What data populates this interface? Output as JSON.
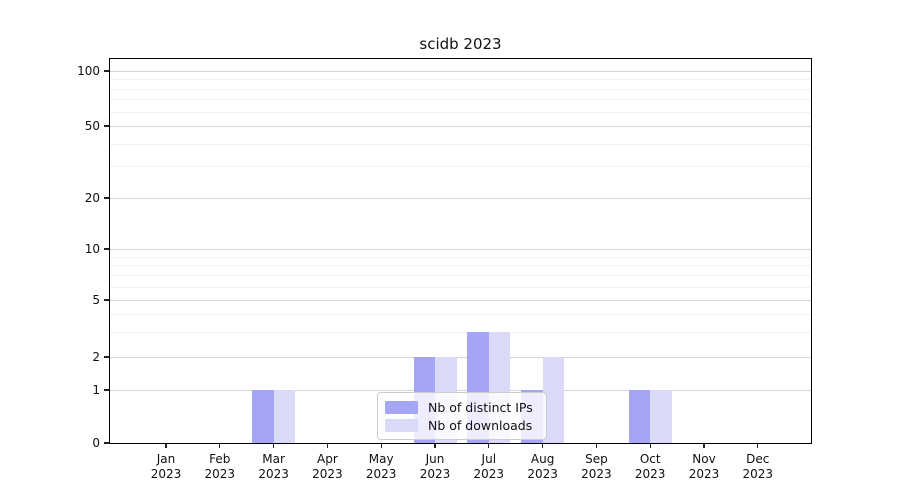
{
  "figure": {
    "background": "#ffffff"
  },
  "chart_data": {
    "type": "bar",
    "title": "scidb 2023",
    "categories": [
      "Jan 2023",
      "Feb 2023",
      "Mar 2023",
      "Apr 2023",
      "May 2023",
      "Jun 2023",
      "Jul 2023",
      "Aug 2023",
      "Sep 2023",
      "Oct 2023",
      "Nov 2023",
      "Dec 2023"
    ],
    "series": [
      {
        "name": "Nb of distinct IPs",
        "color": "#a5a5f5",
        "values": [
          0,
          0,
          1,
          0,
          0,
          2,
          3,
          1,
          0,
          1,
          0,
          0
        ]
      },
      {
        "name": "Nb of downloads",
        "color": "#dadaf8",
        "values": [
          0,
          0,
          1,
          0,
          0,
          2,
          3,
          2,
          0,
          1,
          0,
          0
        ]
      }
    ],
    "xlabel": "",
    "ylabel": "",
    "yscale": "log-like (0 baseline, log spacing above 1)",
    "ylim": [
      0,
      115
    ],
    "y_ticks": [
      0,
      1,
      2,
      5,
      10,
      20,
      50,
      100
    ],
    "y_minor_gridlines": [
      3,
      4,
      6,
      7,
      8,
      9,
      30,
      40,
      60,
      70,
      80,
      90
    ],
    "grid": true,
    "legend_position": "lower center, inside axes",
    "colors": {
      "grid_major": "#d4d4d4",
      "grid_minor": "#f1f1f1",
      "axis": "#000000",
      "text": "#111111",
      "legend_border": "#cccccc"
    }
  }
}
